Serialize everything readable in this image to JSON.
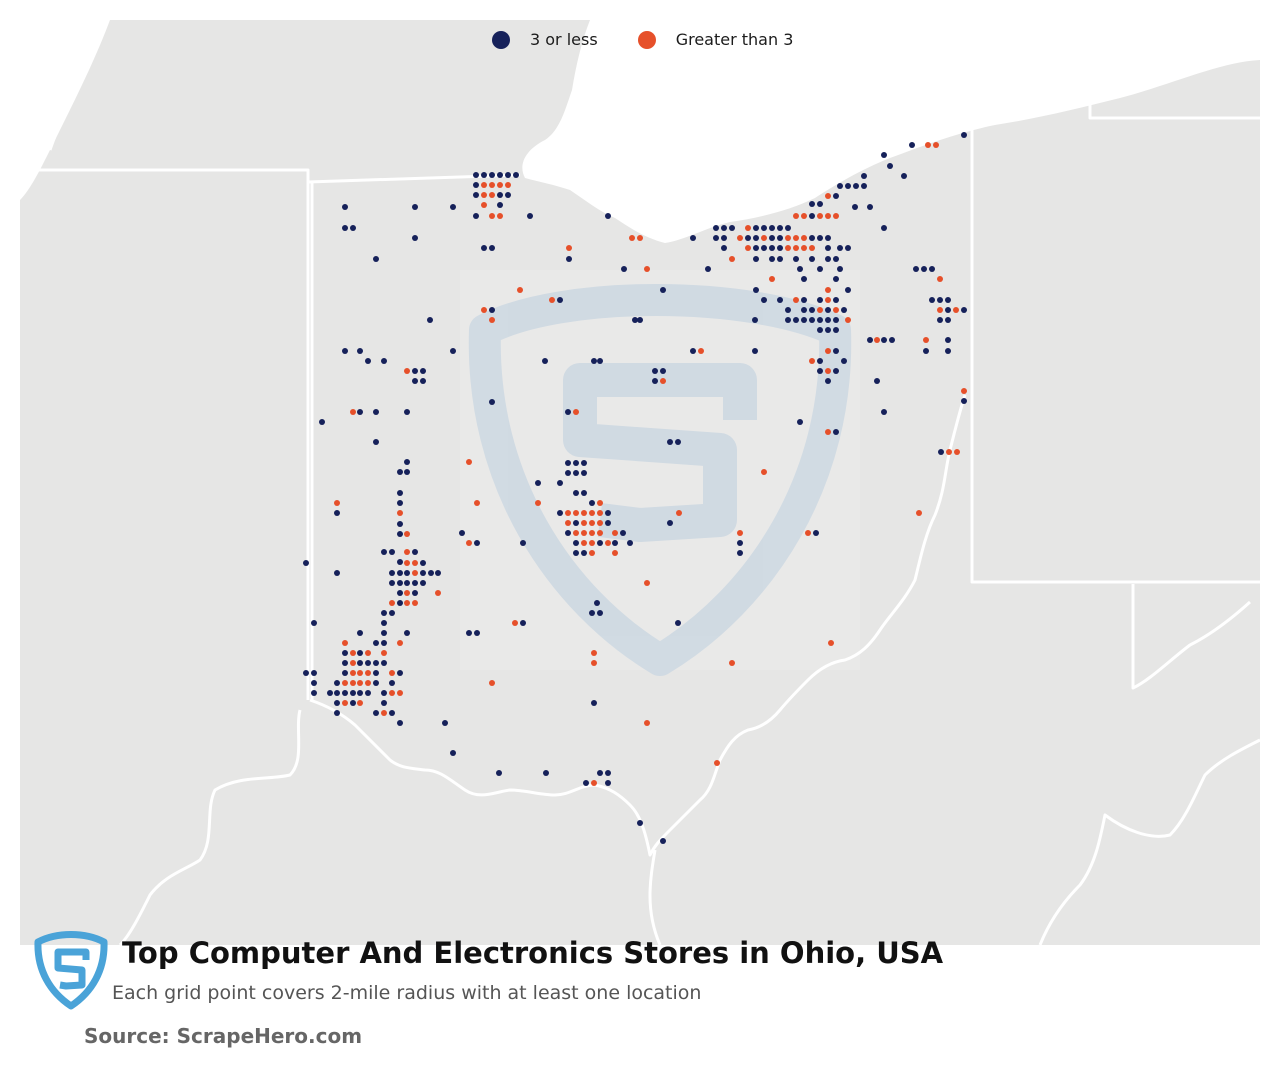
{
  "legend": {
    "low_label": "3 or less",
    "high_label": "Greater than 3",
    "low_color": "#16215a",
    "high_color": "#e6502a"
  },
  "colors": {
    "land": "#e6e6e5",
    "water": "#ffffff",
    "border": "#ffffff",
    "watermark": "#c3d2e0",
    "logo": "#4aa3d8"
  },
  "footer": {
    "title": "Top Computer And Electronics Stores in Ohio, USA",
    "subtitle": "Each grid point covers 2-mile radius with at least one location",
    "source": "Source: ScrapeHero.com"
  },
  "icons": {
    "brand": "scrapehero-shield-logo-icon",
    "watermark": "scrapehero-watermark-icon"
  }
}
